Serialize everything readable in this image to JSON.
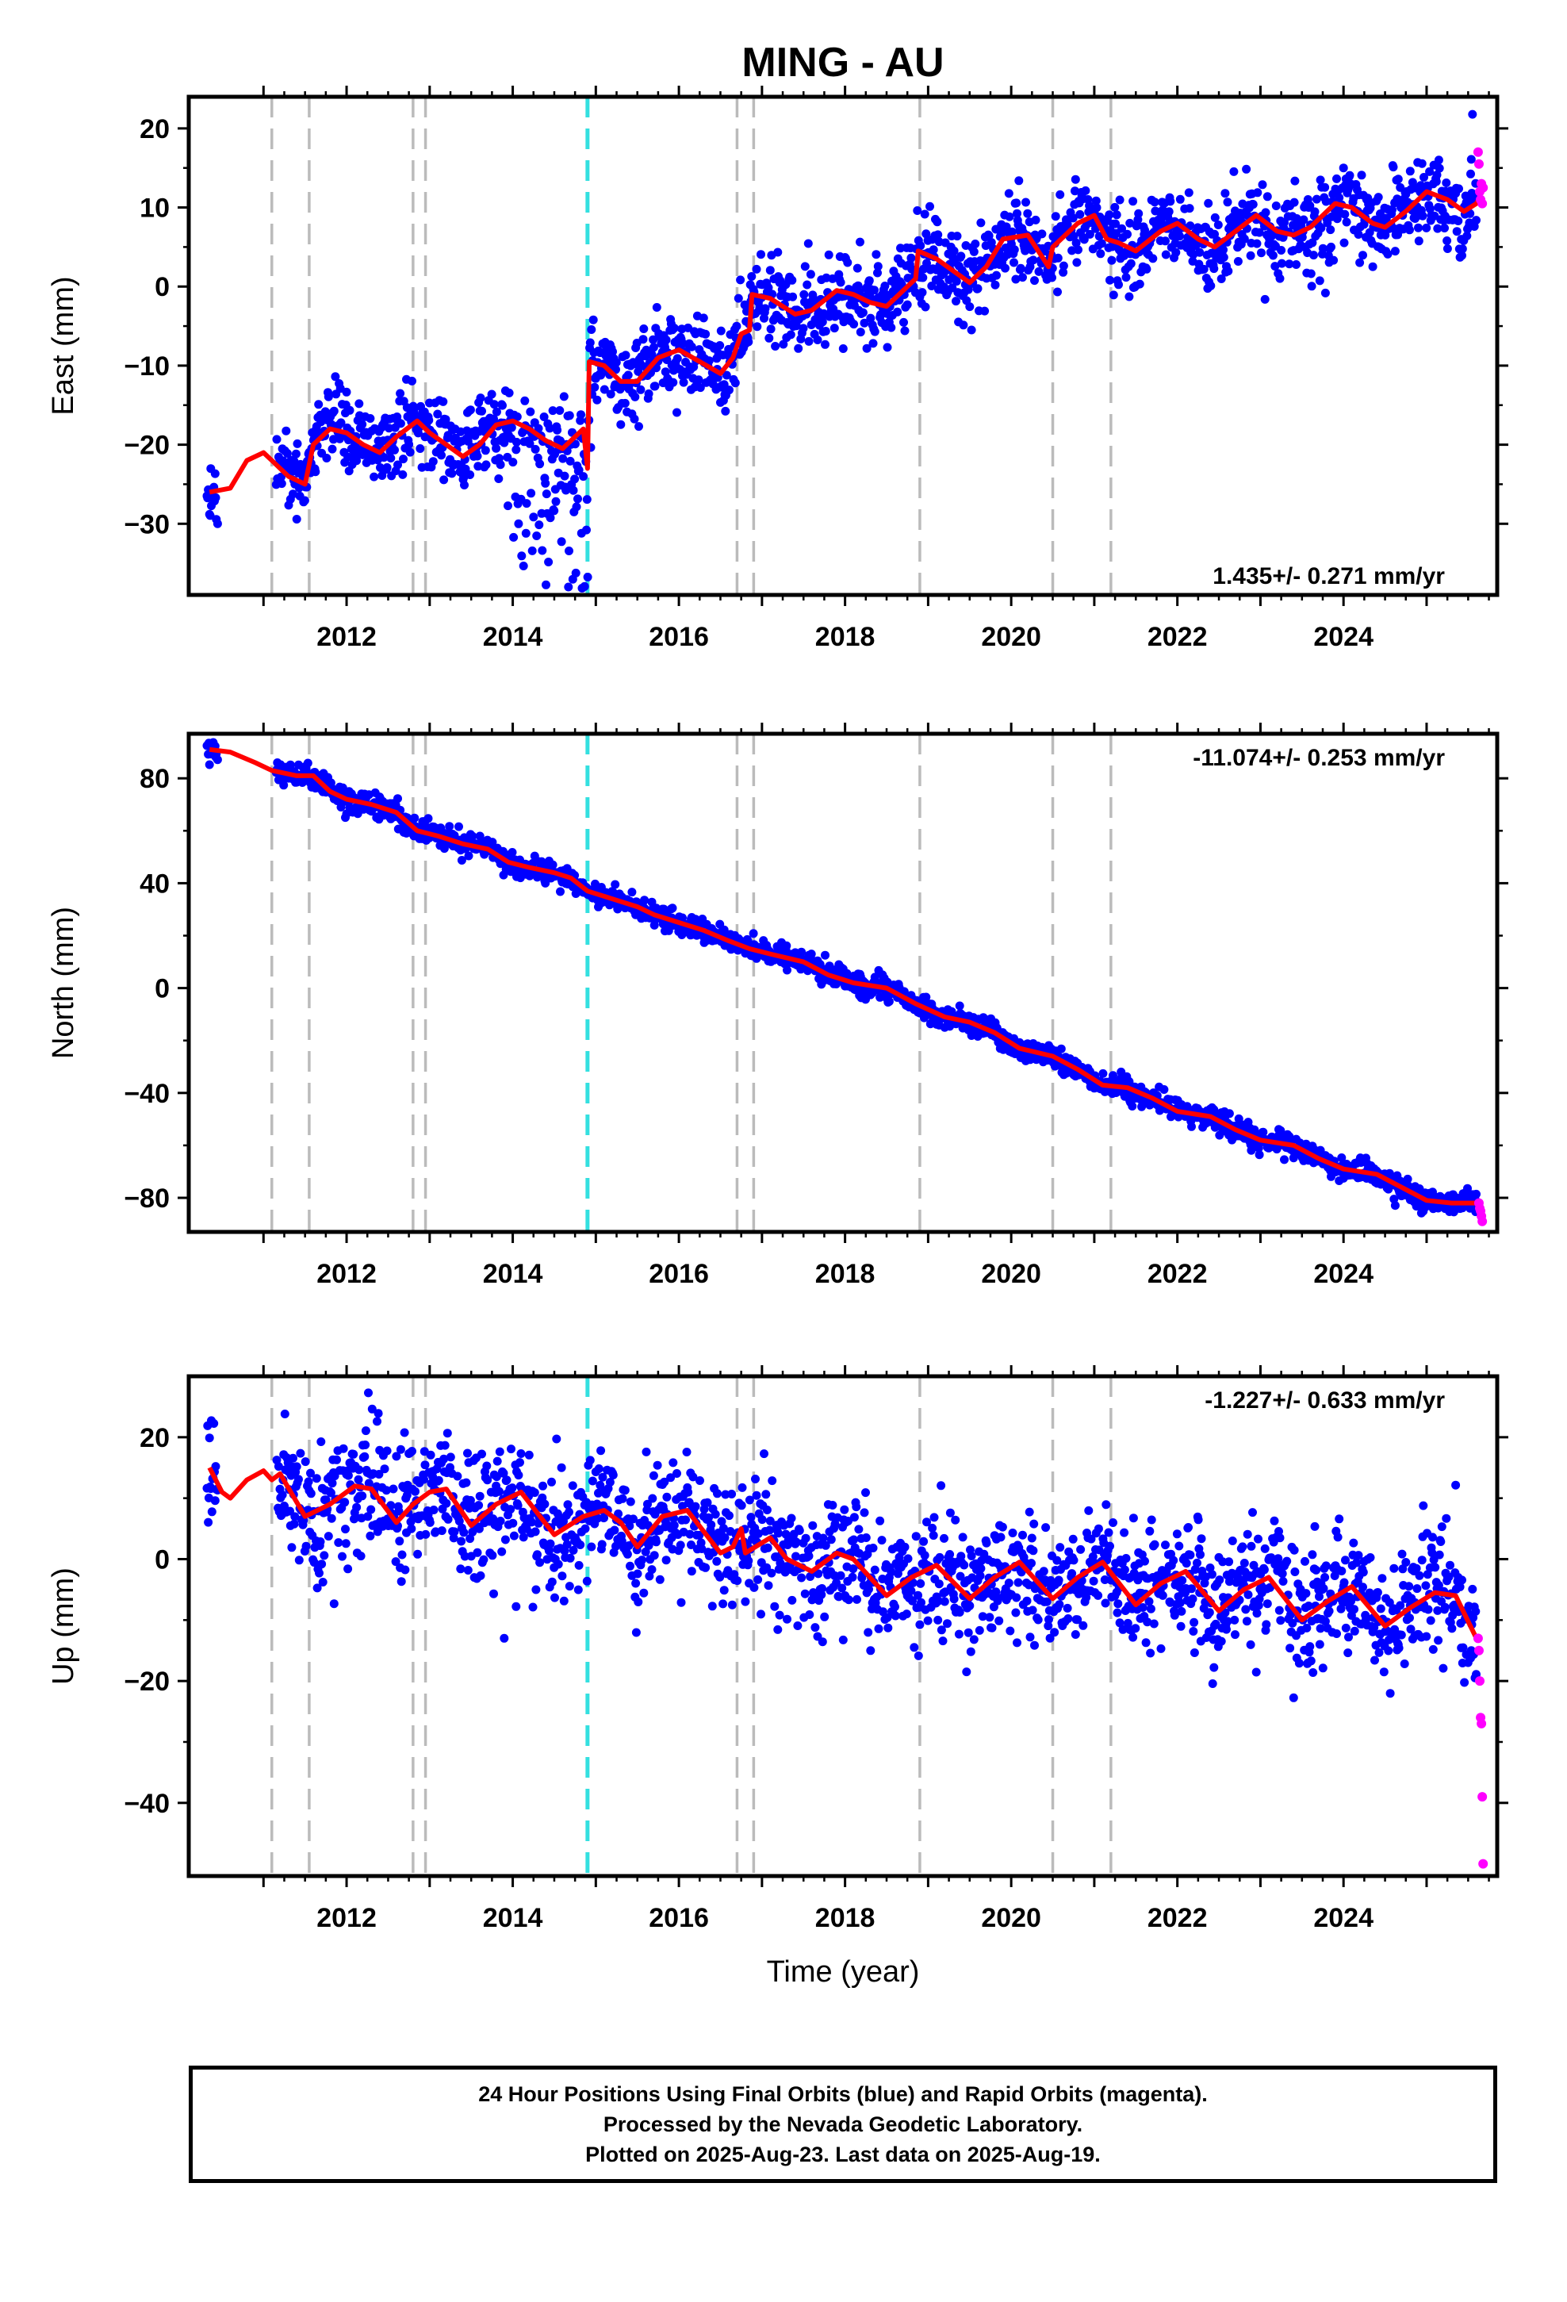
{
  "title": "MING - AU",
  "xlabel": "Time (year)",
  "footer": {
    "line1": "24 Hour Positions Using Final Orbits (blue) and Rapid Orbits (magenta).",
    "line2": "Processed by the Nevada Geodetic Laboratory.",
    "line3": "Plotted on 2025-Aug-23. Last data on 2025-Aug-19."
  },
  "colors": {
    "final": "#0000ff",
    "rapid": "#ff00ff",
    "model": "#ff0000",
    "offset_line": "#bbbbbb",
    "equipment_line": "#33e0e0"
  },
  "chart_data": [
    {
      "type": "scatter",
      "ylabel": "East (mm)",
      "rate": "1.435+/- 0.271 mm/yr",
      "xlim": [
        2010.1,
        2025.85
      ],
      "ylim": [
        -39,
        24
      ],
      "yticks": [
        20,
        10,
        0,
        -10,
        -20,
        -30
      ],
      "xticks": [
        "2012",
        "2014",
        "2016",
        "2018",
        "2020",
        "2022",
        "2024"
      ],
      "model_points": [
        [
          2010.35,
          -26
        ],
        [
          2010.6,
          -25.5
        ],
        [
          2010.8,
          -22
        ],
        [
          2011.0,
          -21
        ],
        [
          2011.1,
          -22
        ],
        [
          2011.3,
          -24
        ],
        [
          2011.5,
          -25
        ],
        [
          2011.6,
          -20
        ],
        [
          2011.8,
          -18
        ],
        [
          2012.0,
          -18.5
        ],
        [
          2012.2,
          -20
        ],
        [
          2012.4,
          -21
        ],
        [
          2012.6,
          -19
        ],
        [
          2012.85,
          -17
        ],
        [
          2013.0,
          -18.5
        ],
        [
          2013.2,
          -20
        ],
        [
          2013.4,
          -21.5
        ],
        [
          2013.6,
          -20
        ],
        [
          2013.8,
          -17.5
        ],
        [
          2014.0,
          -17
        ],
        [
          2014.2,
          -18
        ],
        [
          2014.4,
          -19.5
        ],
        [
          2014.6,
          -20.5
        ],
        [
          2014.85,
          -18
        ],
        [
          2014.9,
          -23
        ],
        [
          2014.92,
          -9.5
        ],
        [
          2015.1,
          -10
        ],
        [
          2015.3,
          -12
        ],
        [
          2015.5,
          -12
        ],
        [
          2015.75,
          -9
        ],
        [
          2016.0,
          -8
        ],
        [
          2016.25,
          -9.5
        ],
        [
          2016.5,
          -11
        ],
        [
          2016.65,
          -9
        ],
        [
          2016.75,
          -6
        ],
        [
          2016.85,
          -5.5
        ],
        [
          2016.88,
          -1
        ],
        [
          2017.1,
          -1.5
        ],
        [
          2017.4,
          -3.5
        ],
        [
          2017.6,
          -3
        ],
        [
          2017.9,
          -0.5
        ],
        [
          2018.1,
          -1
        ],
        [
          2018.3,
          -2
        ],
        [
          2018.5,
          -2.5
        ],
        [
          2018.7,
          -0.5
        ],
        [
          2018.85,
          1
        ],
        [
          2018.88,
          4.5
        ],
        [
          2019.1,
          3.5
        ],
        [
          2019.3,
          2
        ],
        [
          2019.5,
          0.5
        ],
        [
          2019.7,
          2.5
        ],
        [
          2019.9,
          6
        ],
        [
          2020.2,
          6.5
        ],
        [
          2020.45,
          2.5
        ],
        [
          2020.5,
          5
        ],
        [
          2020.8,
          8
        ],
        [
          2021.0,
          9
        ],
        [
          2021.15,
          6
        ],
        [
          2021.3,
          5.5
        ],
        [
          2021.5,
          4.5
        ],
        [
          2021.8,
          7
        ],
        [
          2022.0,
          8
        ],
        [
          2022.25,
          6
        ],
        [
          2022.45,
          5
        ],
        [
          2022.7,
          7
        ],
        [
          2022.95,
          9
        ],
        [
          2023.2,
          7
        ],
        [
          2023.4,
          6.5
        ],
        [
          2023.6,
          7.5
        ],
        [
          2023.9,
          10.5
        ],
        [
          2024.1,
          10
        ],
        [
          2024.35,
          8
        ],
        [
          2024.5,
          7.5
        ],
        [
          2024.75,
          9.5
        ],
        [
          2025.0,
          12
        ],
        [
          2025.25,
          11
        ],
        [
          2025.45,
          9.5
        ],
        [
          2025.6,
          10.5
        ],
        [
          2025.65,
          11.5
        ]
      ],
      "rapid_points": [
        [
          2025.62,
          17
        ],
        [
          2025.63,
          15.5
        ],
        [
          2025.64,
          12
        ],
        [
          2025.65,
          11
        ],
        [
          2025.66,
          13
        ],
        [
          2025.67,
          10.5
        ],
        [
          2025.68,
          12.5
        ]
      ]
    },
    {
      "type": "scatter",
      "ylabel": "North (mm)",
      "rate": "-11.074+/- 0.253 mm/yr",
      "xlim": [
        2010.1,
        2025.85
      ],
      "ylim": [
        -93,
        97
      ],
      "yticks": [
        80,
        40,
        0,
        -40,
        -80
      ],
      "xticks": [
        "2012",
        "2014",
        "2016",
        "2018",
        "2020",
        "2022",
        "2024"
      ],
      "model_points": [
        [
          2010.35,
          91
        ],
        [
          2010.6,
          90
        ],
        [
          2010.9,
          86
        ],
        [
          2011.1,
          83
        ],
        [
          2011.4,
          81
        ],
        [
          2011.6,
          81
        ],
        [
          2011.8,
          75
        ],
        [
          2012.0,
          72
        ],
        [
          2012.3,
          70
        ],
        [
          2012.6,
          67
        ],
        [
          2012.85,
          60
        ],
        [
          2013.1,
          58
        ],
        [
          2013.4,
          55
        ],
        [
          2013.7,
          53
        ],
        [
          2013.95,
          48
        ],
        [
          2014.2,
          46
        ],
        [
          2014.5,
          44
        ],
        [
          2014.7,
          42
        ],
        [
          2014.9,
          37
        ],
        [
          2015.2,
          34
        ],
        [
          2015.5,
          31
        ],
        [
          2015.7,
          28
        ],
        [
          2016.0,
          25
        ],
        [
          2016.3,
          22
        ],
        [
          2016.6,
          18
        ],
        [
          2016.85,
          15
        ],
        [
          2017.1,
          13
        ],
        [
          2017.5,
          10
        ],
        [
          2017.8,
          5
        ],
        [
          2018.1,
          2
        ],
        [
          2018.5,
          0
        ],
        [
          2018.85,
          -6
        ],
        [
          2019.2,
          -11
        ],
        [
          2019.5,
          -13
        ],
        [
          2019.8,
          -17
        ],
        [
          2020.1,
          -23
        ],
        [
          2020.5,
          -26
        ],
        [
          2020.8,
          -31
        ],
        [
          2021.1,
          -37
        ],
        [
          2021.4,
          -38
        ],
        [
          2021.7,
          -42
        ],
        [
          2022.0,
          -47
        ],
        [
          2022.4,
          -49
        ],
        [
          2022.7,
          -54
        ],
        [
          2023.0,
          -58
        ],
        [
          2023.4,
          -60
        ],
        [
          2023.7,
          -65
        ],
        [
          2024.0,
          -69
        ],
        [
          2024.4,
          -71
        ],
        [
          2024.7,
          -76
        ],
        [
          2025.0,
          -81
        ],
        [
          2025.3,
          -82
        ],
        [
          2025.6,
          -82
        ]
      ],
      "rapid_points": [
        [
          2025.63,
          -82
        ],
        [
          2025.64,
          -84
        ],
        [
          2025.65,
          -85
        ],
        [
          2025.66,
          -87
        ],
        [
          2025.67,
          -89
        ]
      ]
    },
    {
      "type": "scatter",
      "ylabel": "Up (mm)",
      "rate": "-1.227+/- 0.633 mm/yr",
      "xlim": [
        2010.1,
        2025.85
      ],
      "ylim": [
        -52,
        30
      ],
      "yticks": [
        20,
        0,
        -20,
        -40
      ],
      "xticks": [
        "2012",
        "2014",
        "2016",
        "2018",
        "2020",
        "2022",
        "2024"
      ],
      "model_points": [
        [
          2010.35,
          15
        ],
        [
          2010.5,
          11
        ],
        [
          2010.6,
          10
        ],
        [
          2010.8,
          13
        ],
        [
          2011.0,
          14.5
        ],
        [
          2011.1,
          13
        ],
        [
          2011.2,
          14
        ],
        [
          2011.5,
          7
        ],
        [
          2011.8,
          9
        ],
        [
          2012.1,
          12
        ],
        [
          2012.3,
          11.5
        ],
        [
          2012.6,
          6
        ],
        [
          2012.8,
          9
        ],
        [
          2013.0,
          11
        ],
        [
          2013.2,
          11.5
        ],
        [
          2013.5,
          5.5
        ],
        [
          2013.8,
          9
        ],
        [
          2014.1,
          11
        ],
        [
          2014.5,
          4
        ],
        [
          2014.85,
          7
        ],
        [
          2015.1,
          8
        ],
        [
          2015.3,
          6
        ],
        [
          2015.5,
          2
        ],
        [
          2015.8,
          7
        ],
        [
          2016.1,
          8
        ],
        [
          2016.5,
          1
        ],
        [
          2016.65,
          2
        ],
        [
          2016.75,
          5
        ],
        [
          2016.8,
          1
        ],
        [
          2017.1,
          3.5
        ],
        [
          2017.3,
          0
        ],
        [
          2017.6,
          -2
        ],
        [
          2017.9,
          1
        ],
        [
          2018.1,
          0
        ],
        [
          2018.5,
          -6
        ],
        [
          2018.8,
          -3
        ],
        [
          2019.1,
          -1
        ],
        [
          2019.5,
          -6.5
        ],
        [
          2019.8,
          -3
        ],
        [
          2020.1,
          -0.5
        ],
        [
          2020.5,
          -6.5
        ],
        [
          2020.8,
          -3
        ],
        [
          2021.1,
          -0.5
        ],
        [
          2021.5,
          -7.5
        ],
        [
          2021.8,
          -4
        ],
        [
          2022.1,
          -2
        ],
        [
          2022.5,
          -8.5
        ],
        [
          2022.8,
          -5
        ],
        [
          2023.1,
          -3
        ],
        [
          2023.5,
          -10
        ],
        [
          2023.8,
          -7
        ],
        [
          2024.1,
          -4.5
        ],
        [
          2024.5,
          -11
        ],
        [
          2024.8,
          -8
        ],
        [
          2025.1,
          -5.5
        ],
        [
          2025.35,
          -6
        ],
        [
          2025.6,
          -13
        ]
      ],
      "rapid_points": [
        [
          2025.62,
          -13
        ],
        [
          2025.63,
          -15
        ],
        [
          2025.64,
          -20
        ],
        [
          2025.65,
          -26
        ],
        [
          2025.66,
          -27
        ],
        [
          2025.67,
          -39
        ],
        [
          2025.68,
          -50
        ]
      ]
    }
  ],
  "offsets": [
    {
      "year": 2011.1,
      "kind": "offset"
    },
    {
      "year": 2011.55,
      "kind": "offset"
    },
    {
      "year": 2012.8,
      "kind": "offset"
    },
    {
      "year": 2012.95,
      "kind": "offset"
    },
    {
      "year": 2014.9,
      "kind": "equipment"
    },
    {
      "year": 2016.7,
      "kind": "offset"
    },
    {
      "year": 2016.9,
      "kind": "offset"
    },
    {
      "year": 2018.9,
      "kind": "offset"
    },
    {
      "year": 2020.5,
      "kind": "offset"
    },
    {
      "year": 2021.2,
      "kind": "offset"
    }
  ]
}
